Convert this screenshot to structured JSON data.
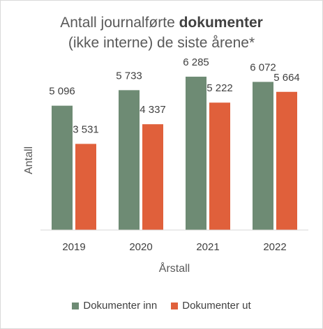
{
  "chart_data": {
    "type": "bar",
    "title_plain": "Antall journalførte ",
    "title_bold": "dokumenter",
    "subtitle": "(ikke interne) de siste årene*",
    "xlabel": "Årstall",
    "ylabel": "Antall",
    "categories": [
      "2019",
      "2020",
      "2021",
      "2022"
    ],
    "ylim": [
      0,
      7000
    ],
    "grid": false,
    "legend_position": "bottom",
    "series": [
      {
        "name": "Dokumenter inn",
        "color": "#6e8b74",
        "values": [
          5096,
          5733,
          6285,
          6072
        ],
        "labels": [
          "5 096",
          "5 733",
          "6 285",
          "6 072"
        ]
      },
      {
        "name": "Dokumenter ut",
        "color": "#e0603b",
        "values": [
          3531,
          4337,
          5222,
          5664
        ],
        "labels": [
          "3 531",
          "4 337",
          "5 222",
          "5 664"
        ]
      }
    ]
  }
}
